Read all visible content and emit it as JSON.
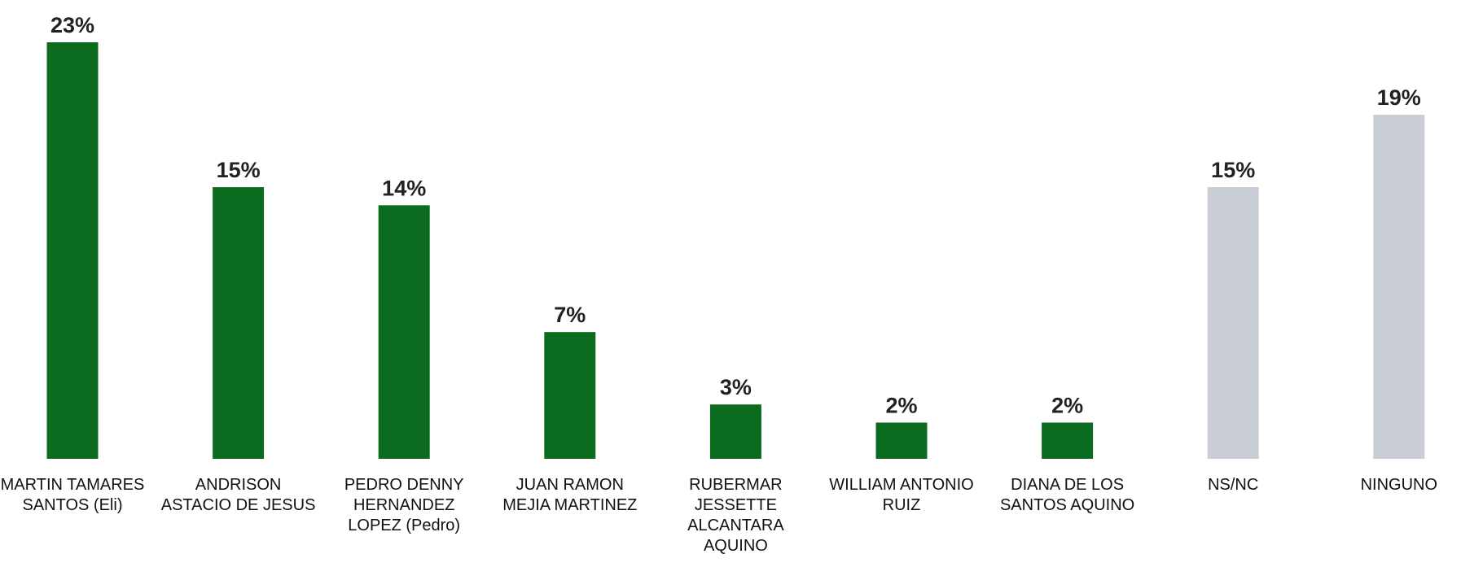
{
  "chart_data": {
    "type": "bar",
    "categories": [
      "MARTIN TAMARES SANTOS (Eli)",
      "ANDRISON ASTACIO DE JESUS",
      "PEDRO DENNY HERNANDEZ LOPEZ (Pedro)",
      "JUAN RAMON MEJIA MARTINEZ",
      "RUBERMAR JESSETTE ALCANTARA AQUINO",
      "WILLIAM ANTONIO RUIZ",
      "DIANA DE LOS SANTOS AQUINO",
      "NS/NC",
      "NINGUNO"
    ],
    "values": [
      23,
      15,
      14,
      7,
      3,
      2,
      2,
      15,
      19
    ],
    "value_labels": [
      "23%",
      "15%",
      "14%",
      "7%",
      "3%",
      "2%",
      "2%",
      "15%",
      "19%"
    ],
    "colors": [
      "#0b6b1f",
      "#0b6b1f",
      "#0b6b1f",
      "#0b6b1f",
      "#0b6b1f",
      "#0b6b1f",
      "#0b6b1f",
      "#c9cdd6",
      "#c9cdd6"
    ]
  }
}
